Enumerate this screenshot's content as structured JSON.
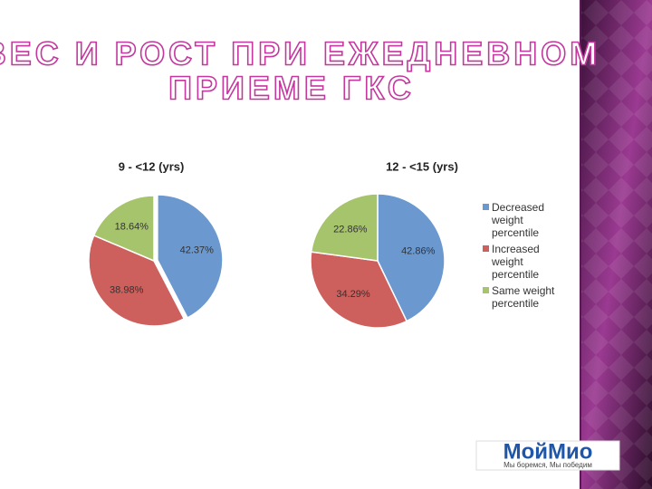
{
  "title": [
    "ВЕС И РОСТ ПРИ ЕЖЕДНЕВНОМ",
    "ПРИЕМЕ ГКС"
  ],
  "logo": {
    "name": "МойМио",
    "tagline": "Мы боремся, Мы победим"
  },
  "chart_data": [
    {
      "type": "pie",
      "title": "9 - <12 (yrs)",
      "categories": [
        "Decreased weight percentile",
        "Increased weight percentile",
        "Same weight percentile"
      ],
      "values": [
        42.37,
        38.98,
        18.64
      ],
      "value_labels": [
        "42.37%",
        "38.98%",
        "18.64%"
      ],
      "colors": [
        "#6a98cf",
        "#cd5f5c",
        "#a6c46b"
      ]
    },
    {
      "type": "pie",
      "title": "12 - <15 (yrs)",
      "categories": [
        "Decreased weight percentile",
        "Increased weight percentile",
        "Same weight percentile"
      ],
      "values": [
        42.86,
        34.29,
        22.86
      ],
      "value_labels": [
        "42.86%",
        "34.29%",
        "22.86%"
      ],
      "colors": [
        "#6a98cf",
        "#cd5f5c",
        "#a6c46b"
      ],
      "legend": "right"
    }
  ]
}
